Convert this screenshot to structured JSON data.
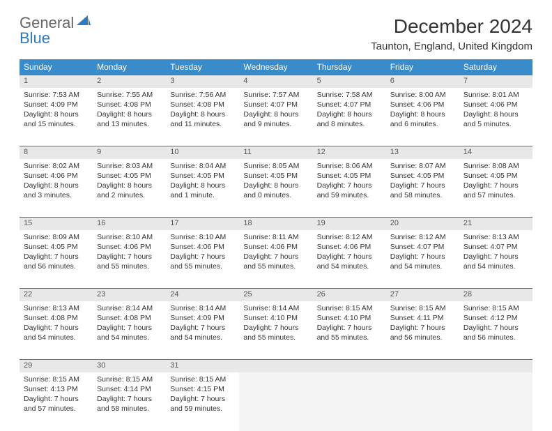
{
  "logo": {
    "word1": "General",
    "word2": "Blue"
  },
  "title": "December 2024",
  "location": "Taunton, England, United Kingdom",
  "colors": {
    "header_bg": "#3a8bc9",
    "accent": "#2d7ac0",
    "daynum_bg": "#e8e8e8"
  },
  "weekdays": [
    "Sunday",
    "Monday",
    "Tuesday",
    "Wednesday",
    "Thursday",
    "Friday",
    "Saturday"
  ],
  "weeks": [
    [
      {
        "n": "1",
        "sr": "Sunrise: 7:53 AM",
        "ss": "Sunset: 4:09 PM",
        "d1": "Daylight: 8 hours",
        "d2": "and 15 minutes."
      },
      {
        "n": "2",
        "sr": "Sunrise: 7:55 AM",
        "ss": "Sunset: 4:08 PM",
        "d1": "Daylight: 8 hours",
        "d2": "and 13 minutes."
      },
      {
        "n": "3",
        "sr": "Sunrise: 7:56 AM",
        "ss": "Sunset: 4:08 PM",
        "d1": "Daylight: 8 hours",
        "d2": "and 11 minutes."
      },
      {
        "n": "4",
        "sr": "Sunrise: 7:57 AM",
        "ss": "Sunset: 4:07 PM",
        "d1": "Daylight: 8 hours",
        "d2": "and 9 minutes."
      },
      {
        "n": "5",
        "sr": "Sunrise: 7:58 AM",
        "ss": "Sunset: 4:07 PM",
        "d1": "Daylight: 8 hours",
        "d2": "and 8 minutes."
      },
      {
        "n": "6",
        "sr": "Sunrise: 8:00 AM",
        "ss": "Sunset: 4:06 PM",
        "d1": "Daylight: 8 hours",
        "d2": "and 6 minutes."
      },
      {
        "n": "7",
        "sr": "Sunrise: 8:01 AM",
        "ss": "Sunset: 4:06 PM",
        "d1": "Daylight: 8 hours",
        "d2": "and 5 minutes."
      }
    ],
    [
      {
        "n": "8",
        "sr": "Sunrise: 8:02 AM",
        "ss": "Sunset: 4:06 PM",
        "d1": "Daylight: 8 hours",
        "d2": "and 3 minutes."
      },
      {
        "n": "9",
        "sr": "Sunrise: 8:03 AM",
        "ss": "Sunset: 4:05 PM",
        "d1": "Daylight: 8 hours",
        "d2": "and 2 minutes."
      },
      {
        "n": "10",
        "sr": "Sunrise: 8:04 AM",
        "ss": "Sunset: 4:05 PM",
        "d1": "Daylight: 8 hours",
        "d2": "and 1 minute."
      },
      {
        "n": "11",
        "sr": "Sunrise: 8:05 AM",
        "ss": "Sunset: 4:05 PM",
        "d1": "Daylight: 8 hours",
        "d2": "and 0 minutes."
      },
      {
        "n": "12",
        "sr": "Sunrise: 8:06 AM",
        "ss": "Sunset: 4:05 PM",
        "d1": "Daylight: 7 hours",
        "d2": "and 59 minutes."
      },
      {
        "n": "13",
        "sr": "Sunrise: 8:07 AM",
        "ss": "Sunset: 4:05 PM",
        "d1": "Daylight: 7 hours",
        "d2": "and 58 minutes."
      },
      {
        "n": "14",
        "sr": "Sunrise: 8:08 AM",
        "ss": "Sunset: 4:05 PM",
        "d1": "Daylight: 7 hours",
        "d2": "and 57 minutes."
      }
    ],
    [
      {
        "n": "15",
        "sr": "Sunrise: 8:09 AM",
        "ss": "Sunset: 4:05 PM",
        "d1": "Daylight: 7 hours",
        "d2": "and 56 minutes."
      },
      {
        "n": "16",
        "sr": "Sunrise: 8:10 AM",
        "ss": "Sunset: 4:06 PM",
        "d1": "Daylight: 7 hours",
        "d2": "and 55 minutes."
      },
      {
        "n": "17",
        "sr": "Sunrise: 8:10 AM",
        "ss": "Sunset: 4:06 PM",
        "d1": "Daylight: 7 hours",
        "d2": "and 55 minutes."
      },
      {
        "n": "18",
        "sr": "Sunrise: 8:11 AM",
        "ss": "Sunset: 4:06 PM",
        "d1": "Daylight: 7 hours",
        "d2": "and 55 minutes."
      },
      {
        "n": "19",
        "sr": "Sunrise: 8:12 AM",
        "ss": "Sunset: 4:06 PM",
        "d1": "Daylight: 7 hours",
        "d2": "and 54 minutes."
      },
      {
        "n": "20",
        "sr": "Sunrise: 8:12 AM",
        "ss": "Sunset: 4:07 PM",
        "d1": "Daylight: 7 hours",
        "d2": "and 54 minutes."
      },
      {
        "n": "21",
        "sr": "Sunrise: 8:13 AM",
        "ss": "Sunset: 4:07 PM",
        "d1": "Daylight: 7 hours",
        "d2": "and 54 minutes."
      }
    ],
    [
      {
        "n": "22",
        "sr": "Sunrise: 8:13 AM",
        "ss": "Sunset: 4:08 PM",
        "d1": "Daylight: 7 hours",
        "d2": "and 54 minutes."
      },
      {
        "n": "23",
        "sr": "Sunrise: 8:14 AM",
        "ss": "Sunset: 4:08 PM",
        "d1": "Daylight: 7 hours",
        "d2": "and 54 minutes."
      },
      {
        "n": "24",
        "sr": "Sunrise: 8:14 AM",
        "ss": "Sunset: 4:09 PM",
        "d1": "Daylight: 7 hours",
        "d2": "and 54 minutes."
      },
      {
        "n": "25",
        "sr": "Sunrise: 8:14 AM",
        "ss": "Sunset: 4:10 PM",
        "d1": "Daylight: 7 hours",
        "d2": "and 55 minutes."
      },
      {
        "n": "26",
        "sr": "Sunrise: 8:15 AM",
        "ss": "Sunset: 4:10 PM",
        "d1": "Daylight: 7 hours",
        "d2": "and 55 minutes."
      },
      {
        "n": "27",
        "sr": "Sunrise: 8:15 AM",
        "ss": "Sunset: 4:11 PM",
        "d1": "Daylight: 7 hours",
        "d2": "and 56 minutes."
      },
      {
        "n": "28",
        "sr": "Sunrise: 8:15 AM",
        "ss": "Sunset: 4:12 PM",
        "d1": "Daylight: 7 hours",
        "d2": "and 56 minutes."
      }
    ],
    [
      {
        "n": "29",
        "sr": "Sunrise: 8:15 AM",
        "ss": "Sunset: 4:13 PM",
        "d1": "Daylight: 7 hours",
        "d2": "and 57 minutes."
      },
      {
        "n": "30",
        "sr": "Sunrise: 8:15 AM",
        "ss": "Sunset: 4:14 PM",
        "d1": "Daylight: 7 hours",
        "d2": "and 58 minutes."
      },
      {
        "n": "31",
        "sr": "Sunrise: 8:15 AM",
        "ss": "Sunset: 4:15 PM",
        "d1": "Daylight: 7 hours",
        "d2": "and 59 minutes."
      },
      null,
      null,
      null,
      null
    ]
  ]
}
